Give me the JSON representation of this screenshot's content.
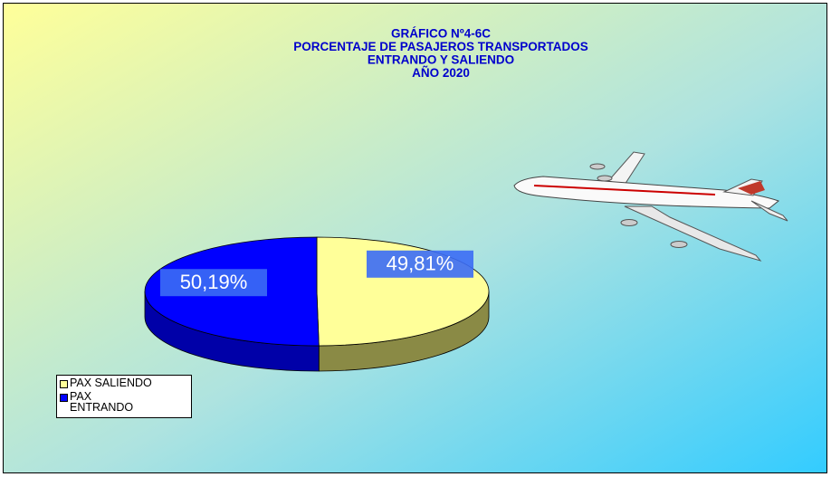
{
  "chart_data": {
    "type": "pie",
    "title": [
      "GRÁFICO Nº4-6C",
      "PORCENTAJE DE PASAJEROS TRANSPORTADOS",
      "ENTRANDO Y SALIENDO",
      "AÑO 2020"
    ],
    "categories": [
      "PAX SALIENDO",
      "PAX ENTRANDO"
    ],
    "values": [
      49.81,
      50.19
    ],
    "value_labels": [
      "49,81%",
      "50,19%"
    ],
    "colors": [
      "#ffff99",
      "#0000ff"
    ],
    "side_colors": [
      "#8a8a45",
      "#0000a8"
    ],
    "legend": "bottom-left"
  }
}
